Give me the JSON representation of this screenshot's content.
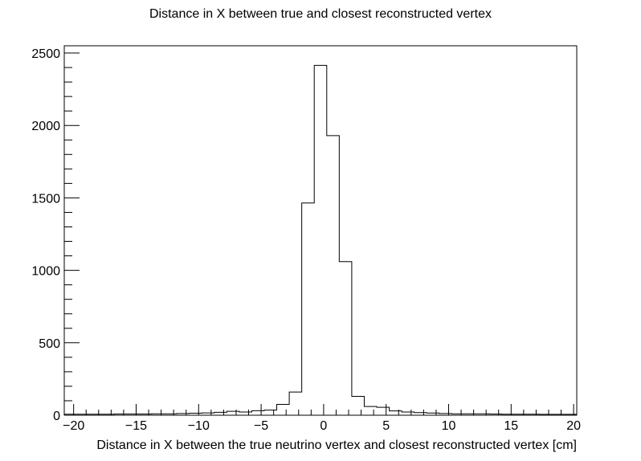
{
  "chart_data": {
    "type": "bar",
    "style": "step-histogram",
    "title": "Distance in X between true and closest reconstructed vertex",
    "xlabel": "Distance in X between the true neutrino vertex and closest reconstructed vertex [cm]",
    "ylabel": "",
    "xlim": [
      -20.75,
      20.25
    ],
    "ylim": [
      0,
      2550
    ],
    "bin_edges": [
      -20.75,
      -19.75,
      -18.75,
      -17.75,
      -16.75,
      -15.75,
      -14.75,
      -13.75,
      -12.75,
      -11.75,
      -10.75,
      -9.75,
      -8.75,
      -7.75,
      -6.75,
      -5.75,
      -4.75,
      -3.75,
      -2.75,
      -1.75,
      -0.75,
      0.25,
      1.25,
      2.25,
      3.25,
      4.25,
      5.25,
      6.25,
      7.25,
      8.25,
      9.25,
      10.25,
      11.25,
      12.25,
      13.25,
      14.25,
      15.25,
      16.25,
      17.25,
      18.25,
      19.25,
      20.25
    ],
    "values": [
      7,
      7,
      7,
      7,
      8,
      8,
      8,
      10,
      10,
      12,
      14,
      16,
      20,
      27,
      22,
      31,
      35,
      75,
      160,
      1465,
      2415,
      1930,
      1060,
      130,
      60,
      55,
      30,
      22,
      18,
      15,
      12,
      10,
      10,
      10,
      8,
      7,
      7,
      7,
      6,
      6,
      6
    ],
    "x_ticks": [
      -20,
      -15,
      -10,
      -5,
      0,
      5,
      10,
      15,
      20
    ],
    "x_tick_labels": [
      "−20",
      "−15",
      "−10",
      "−5",
      "0",
      "5",
      "10",
      "15",
      "20"
    ],
    "y_ticks": [
      0,
      500,
      1000,
      1500,
      2000,
      2500
    ],
    "y_tick_labels": [
      "0",
      "500",
      "1000",
      "1500",
      "2000",
      "2500"
    ],
    "grid": false,
    "legend": "none",
    "colors": {
      "line": "#000000",
      "frame": "#000000",
      "background": "#ffffff"
    }
  }
}
